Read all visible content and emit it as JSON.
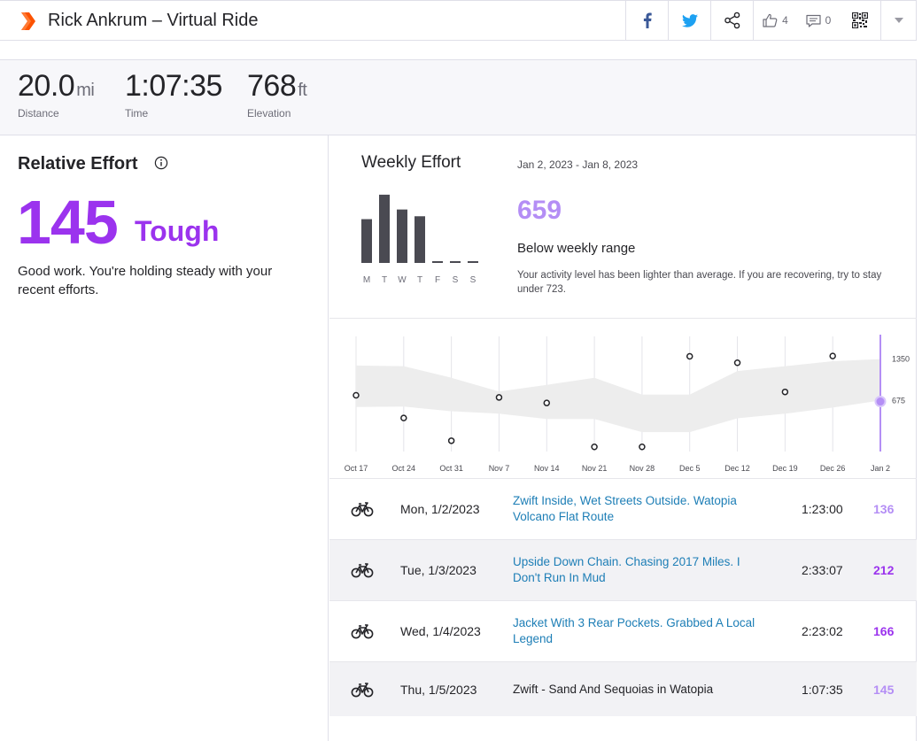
{
  "header": {
    "title": "Rick Ankrum – Virtual Ride",
    "kudos_count": "4",
    "comment_count": "0",
    "brand_color": "#fc5200"
  },
  "stats": [
    {
      "value": "20.0",
      "unit": "mi",
      "label": "Distance"
    },
    {
      "value": "1:07:35",
      "unit": "",
      "label": "Time"
    },
    {
      "value": "768",
      "unit": "ft",
      "label": "Elevation"
    }
  ],
  "relative_effort": {
    "title": "Relative Effort",
    "score": "145",
    "level": "Tough",
    "description": "Good work. You're holding steady with your recent efforts.",
    "accent_color": "#9b33ee"
  },
  "weekly_effort": {
    "title": "Weekly Effort",
    "date_range": "Jan 2, 2023 - Jan 8, 2023",
    "score": "659",
    "status": "Below weekly range",
    "message": "Your activity level has been lighter than average. If you are recovering, try to stay under 723.",
    "days": [
      "M",
      "T",
      "W",
      "T",
      "F",
      "S",
      "S"
    ],
    "day_values": [
      136,
      212,
      166,
      145,
      0,
      0,
      0
    ]
  },
  "chart_data": {
    "type": "scatter",
    "title": "",
    "xlabel": "",
    "ylabel": "",
    "x": [
      "Oct 17",
      "Oct 24",
      "Oct 31",
      "Nov 7",
      "Nov 14",
      "Nov 21",
      "Nov 28",
      "Dec 5",
      "Dec 12",
      "Dec 19",
      "Dec 26",
      "Jan 2"
    ],
    "series": [
      {
        "values": [
          760,
          390,
          20,
          725,
          635,
          -80,
          -80,
          1395,
          1290,
          815,
          1400,
          659
        ]
      },
      {
        "values": [
          1245,
          1235,
          1045,
          820,
          930,
          1045,
          770,
          770,
          1155,
          1235,
          1315,
          1350
        ]
      },
      {
        "values": [
          570,
          575,
          500,
          460,
          375,
          375,
          160,
          160,
          385,
          460,
          560,
          675
        ]
      }
    ],
    "y_ticks": [
      "1350",
      "675"
    ],
    "ylim": [
      -300,
      1950
    ],
    "grid": true,
    "band_color": "#ededed",
    "highlight_color": "#b48ef5"
  },
  "activities": [
    {
      "date": "Mon, 1/2/2023",
      "name": "Zwift Inside, Wet Streets Outside. Watopia Volcano Flat Route",
      "duration": "1:23:00",
      "effort": "136",
      "effort_color": "#b48ef5",
      "link": true
    },
    {
      "date": "Tue, 1/3/2023",
      "name": "Upside Down Chain. Chasing 2017 Miles. I Don't Run In Mud",
      "duration": "2:33:07",
      "effort": "212",
      "effort_color": "#9b33ee",
      "link": true
    },
    {
      "date": "Wed, 1/4/2023",
      "name": "Jacket With 3 Rear Pockets. Grabbed A Local Legend",
      "duration": "2:23:02",
      "effort": "166",
      "effort_color": "#9b33ee",
      "link": true
    },
    {
      "date": "Thu, 1/5/2023",
      "name": "Zwift - Sand And Sequoias in Watopia",
      "duration": "1:07:35",
      "effort": "145",
      "effort_color": "#b48ef5",
      "link": false
    }
  ]
}
